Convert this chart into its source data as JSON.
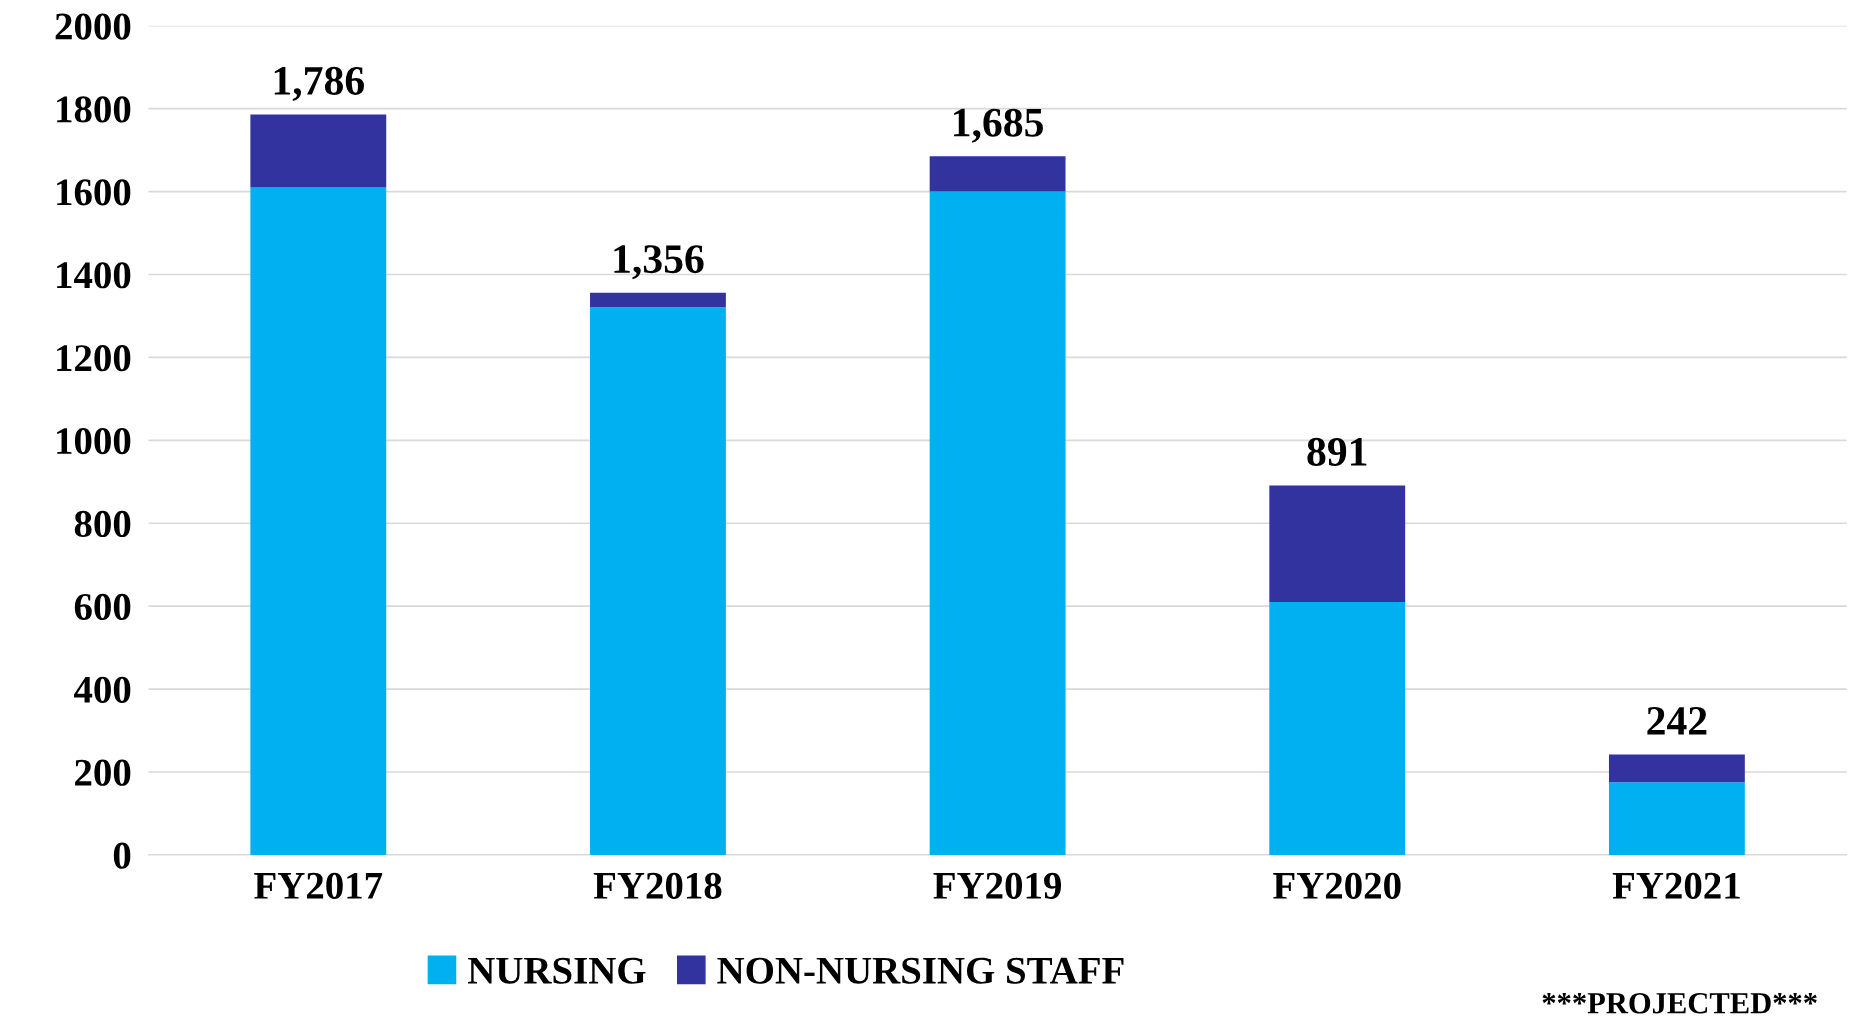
{
  "chart_data": {
    "type": "bar",
    "stacked": true,
    "categories": [
      "FY2017",
      "FY2018",
      "FY2019",
      "FY2020",
      "FY2021"
    ],
    "series": [
      {
        "name": "NURSING",
        "color": "#00b0f0",
        "values": [
          1610,
          1321,
          1600,
          610,
          175
        ]
      },
      {
        "name": "NON-NURSING STAFF",
        "color": "#3333a0",
        "values": [
          176,
          35,
          85,
          281,
          67
        ]
      }
    ],
    "totals": [
      "1,786",
      "1,356",
      "1,685",
      "891",
      "242"
    ],
    "ylim": [
      0,
      2000
    ],
    "yticks": [
      0,
      200,
      400,
      600,
      800,
      1000,
      1200,
      1400,
      1600,
      1800,
      2000
    ],
    "grid": "y",
    "legend": "bottom",
    "annotations": [
      "***PROJECTED***"
    ]
  }
}
